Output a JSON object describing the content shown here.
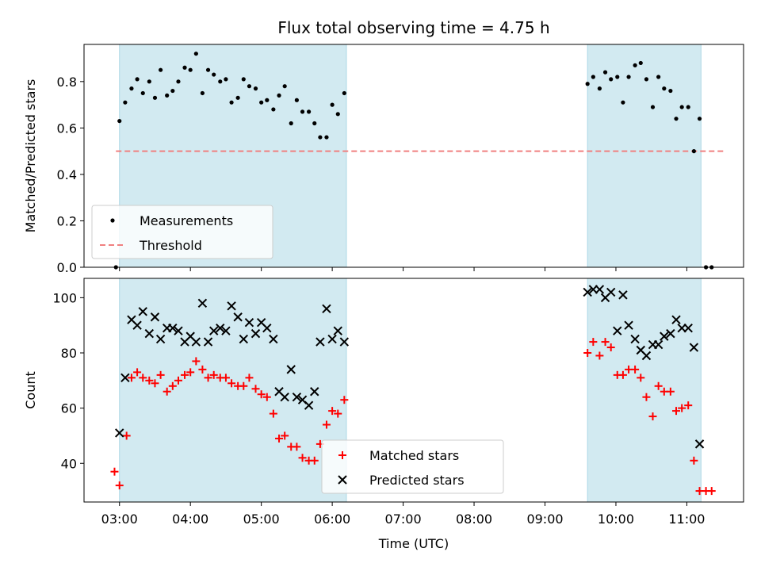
{
  "chart_data": [
    {
      "type": "scatter",
      "title": "Flux total observing time = 4.75 h",
      "ylabel": "Matched/Predicted stars",
      "xlabel": "",
      "x_unit": "hours UTC",
      "xlim": [
        2.5,
        11.8
      ],
      "ylim": [
        0,
        0.96
      ],
      "yticks": [
        0.0,
        0.2,
        0.4,
        0.6,
        0.8
      ],
      "ytick_labels": [
        "0.0",
        "0.2",
        "0.4",
        "0.6",
        "0.8"
      ],
      "shaded_intervals": [
        [
          3.0,
          6.2
        ],
        [
          9.6,
          11.2
        ]
      ],
      "shade_color": "#add8e6",
      "legend_position": "lower-left",
      "series": [
        {
          "name": "Measurements",
          "marker": "dot",
          "color": "#000000",
          "x": [
            2.95,
            3.0,
            3.08,
            3.17,
            3.25,
            3.33,
            3.42,
            3.5,
            3.58,
            3.67,
            3.75,
            3.83,
            3.92,
            4.0,
            4.08,
            4.17,
            4.25,
            4.33,
            4.42,
            4.5,
            4.58,
            4.67,
            4.75,
            4.83,
            4.92,
            5.0,
            5.08,
            5.17,
            5.25,
            5.33,
            5.42,
            5.5,
            5.58,
            5.67,
            5.75,
            5.83,
            5.92,
            6.0,
            6.08,
            6.17,
            9.6,
            9.68,
            9.77,
            9.85,
            9.93,
            10.02,
            10.1,
            10.18,
            10.27,
            10.35,
            10.43,
            10.52,
            10.6,
            10.68,
            10.77,
            10.85,
            10.93,
            11.02,
            11.1,
            11.18,
            11.27,
            11.35
          ],
          "y": [
            0.0,
            0.63,
            0.71,
            0.77,
            0.81,
            0.75,
            0.8,
            0.73,
            0.85,
            0.74,
            0.76,
            0.8,
            0.86,
            0.85,
            0.92,
            0.75,
            0.85,
            0.83,
            0.8,
            0.81,
            0.71,
            0.73,
            0.81,
            0.78,
            0.77,
            0.71,
            0.72,
            0.68,
            0.74,
            0.78,
            0.62,
            0.72,
            0.67,
            0.67,
            0.62,
            0.56,
            0.56,
            0.7,
            0.66,
            0.75,
            0.79,
            0.82,
            0.77,
            0.84,
            0.81,
            0.82,
            0.71,
            0.82,
            0.87,
            0.88,
            0.81,
            0.69,
            0.82,
            0.77,
            0.76,
            0.64,
            0.69,
            0.69,
            0.5,
            0.64,
            0.0,
            0.0
          ]
        },
        {
          "name": "Threshold",
          "marker": "dashed-line",
          "color": "#f08080",
          "x": [
            2.95,
            11.55
          ],
          "y": [
            0.5,
            0.5
          ]
        }
      ]
    },
    {
      "type": "scatter",
      "title": "",
      "ylabel": "Count",
      "xlabel": "Time (UTC)",
      "x_unit": "hours UTC",
      "xlim": [
        2.5,
        11.8
      ],
      "ylim": [
        26,
        107
      ],
      "yticks": [
        40,
        60,
        80,
        100
      ],
      "ytick_labels": [
        "40",
        "60",
        "80",
        "100"
      ],
      "xticks": [
        3,
        4,
        5,
        6,
        7,
        8,
        9,
        10,
        11
      ],
      "xtick_labels": [
        "03:00",
        "04:00",
        "05:00",
        "06:00",
        "07:00",
        "08:00",
        "09:00",
        "10:00",
        "11:00"
      ],
      "shaded_intervals": [
        [
          3.0,
          6.2
        ],
        [
          9.6,
          11.2
        ]
      ],
      "shade_color": "#add8e6",
      "legend_position": "lower-center",
      "series": [
        {
          "name": "Matched stars",
          "marker": "plus",
          "color": "#ff0000",
          "x": [
            2.93,
            3.0,
            3.1,
            3.17,
            3.25,
            3.33,
            3.42,
            3.5,
            3.58,
            3.67,
            3.75,
            3.83,
            3.92,
            4.0,
            4.08,
            4.17,
            4.25,
            4.33,
            4.42,
            4.5,
            4.58,
            4.67,
            4.75,
            4.83,
            4.92,
            5.0,
            5.08,
            5.17,
            5.25,
            5.33,
            5.42,
            5.5,
            5.58,
            5.67,
            5.75,
            5.83,
            5.92,
            6.0,
            6.08,
            6.17,
            9.6,
            9.68,
            9.77,
            9.85,
            9.93,
            10.02,
            10.1,
            10.18,
            10.27,
            10.35,
            10.43,
            10.52,
            10.6,
            10.68,
            10.77,
            10.85,
            10.93,
            11.02,
            11.1,
            11.18,
            11.27,
            11.35
          ],
          "y": [
            37,
            32,
            50,
            71,
            73,
            71,
            70,
            69,
            72,
            66,
            68,
            70,
            72,
            73,
            77,
            74,
            71,
            72,
            71,
            71,
            69,
            68,
            68,
            71,
            67,
            65,
            64,
            58,
            49,
            50,
            46,
            46,
            42,
            41,
            41,
            47,
            54,
            59,
            58,
            63,
            80,
            84,
            79,
            84,
            82,
            72,
            72,
            74,
            74,
            71,
            64,
            57,
            68,
            66,
            66,
            59,
            60,
            61,
            41,
            30,
            30,
            30
          ]
        },
        {
          "name": "Predicted stars",
          "marker": "x",
          "color": "#000000",
          "x": [
            3.0,
            3.08,
            3.17,
            3.25,
            3.33,
            3.42,
            3.5,
            3.58,
            3.67,
            3.75,
            3.83,
            3.92,
            4.0,
            4.08,
            4.17,
            4.25,
            4.33,
            4.42,
            4.5,
            4.58,
            4.67,
            4.75,
            4.83,
            4.92,
            5.0,
            5.08,
            5.17,
            5.25,
            5.33,
            5.42,
            5.5,
            5.58,
            5.67,
            5.75,
            5.83,
            5.92,
            6.0,
            6.08,
            6.17,
            9.6,
            9.68,
            9.77,
            9.85,
            9.93,
            10.02,
            10.1,
            10.18,
            10.27,
            10.35,
            10.43,
            10.52,
            10.6,
            10.68,
            10.77,
            10.85,
            10.93,
            11.02,
            11.1,
            11.18
          ],
          "y": [
            51,
            71,
            92,
            90,
            95,
            87,
            93,
            85,
            89,
            89,
            88,
            84,
            86,
            84,
            98,
            84,
            88,
            89,
            88,
            97,
            93,
            85,
            91,
            87,
            91,
            89,
            85,
            66,
            64,
            74,
            64,
            63,
            61,
            66,
            84,
            96,
            85,
            88,
            84,
            102,
            103,
            103,
            100,
            102,
            88,
            101,
            90,
            85,
            81,
            79,
            83,
            83,
            86,
            87,
            92,
            89,
            89,
            82,
            47
          ]
        }
      ]
    }
  ]
}
